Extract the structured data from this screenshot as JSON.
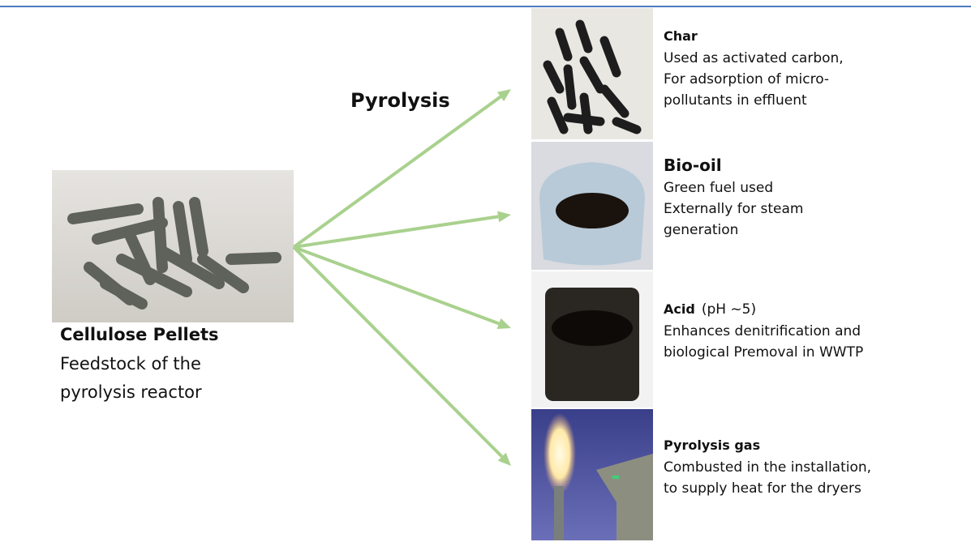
{
  "title": "Pyrolysis",
  "feedstock": {
    "title": "Cellulose Pellets",
    "lines": [
      "Feedstock of the",
      "pyrolysis reactor"
    ]
  },
  "products": [
    {
      "title": "Char",
      "lines": [
        "Used as activated carbon,",
        "For adsorption of micro-",
        "pollutants in effluent"
      ]
    },
    {
      "title": "Bio-oil",
      "lines": [
        "Green fuel used",
        "Externally for steam",
        "generation"
      ]
    },
    {
      "title": "Acid",
      "note": "(pH ~5)",
      "lines": [
        "Enhances denitrification and",
        "biological Premoval in WWTP"
      ]
    },
    {
      "title": "Pyrolysis gas",
      "lines": [
        "Combusted in the installation,",
        "to supply heat for the dryers"
      ]
    }
  ]
}
